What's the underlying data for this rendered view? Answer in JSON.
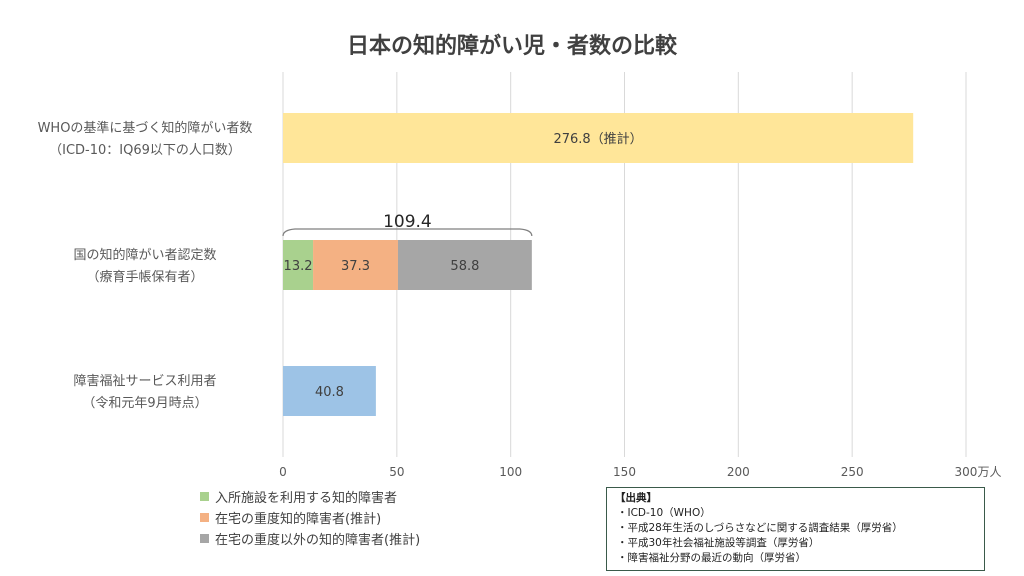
{
  "chart_data": {
    "type": "bar",
    "orientation": "horizontal",
    "title": "日本の知的障がい児・者数の比較",
    "x_unit": "万人",
    "xlim": [
      0,
      300
    ],
    "xticks": [
      0,
      50,
      100,
      150,
      200,
      250,
      300
    ],
    "grid": true,
    "legend_position": "bottom-left",
    "categories": [
      {
        "line1": "WHOの基準に基づく知的障がい者数",
        "line2": "（ICD-10：IQ69以下の人口数）"
      },
      {
        "line1": "国の知的障がい者認定数",
        "line2": "（療育手帳保有者）"
      },
      {
        "line1": "障害福祉サービス利用者",
        "line2": "（令和元年9月時点）"
      }
    ],
    "rows": [
      {
        "segments": [
          {
            "value": 276.8,
            "label": "276.8（推計）",
            "color": "#FFE699"
          }
        ]
      },
      {
        "segments": [
          {
            "value": 13.2,
            "label": "13.2",
            "color": "#A9D18E"
          },
          {
            "value": 37.3,
            "label": "37.3",
            "color": "#F4B183"
          },
          {
            "value": 58.8,
            "label": "58.8",
            "color": "#A6A6A6"
          }
        ],
        "total_label": "109.4"
      },
      {
        "segments": [
          {
            "value": 40.8,
            "label": "40.8",
            "color": "#9DC3E6"
          }
        ]
      }
    ],
    "legend": [
      {
        "label": "入所施設を利用する知的障害者",
        "color": "#A9D18E"
      },
      {
        "label": "在宅の重度知的障害者(推計)",
        "color": "#F4B183"
      },
      {
        "label": "在宅の重度以外の知的障害者(推計)",
        "color": "#A6A6A6"
      }
    ]
  },
  "source": {
    "title": "【出典】",
    "lines": [
      "・ICD-10（WHO）",
      "・平成28年生活のしづらさなどに関する調査結果（厚労省）",
      "・平成30年社会福祉施設等調査（厚労省）",
      "・障害福祉分野の最近の動向（厚労省）"
    ]
  }
}
